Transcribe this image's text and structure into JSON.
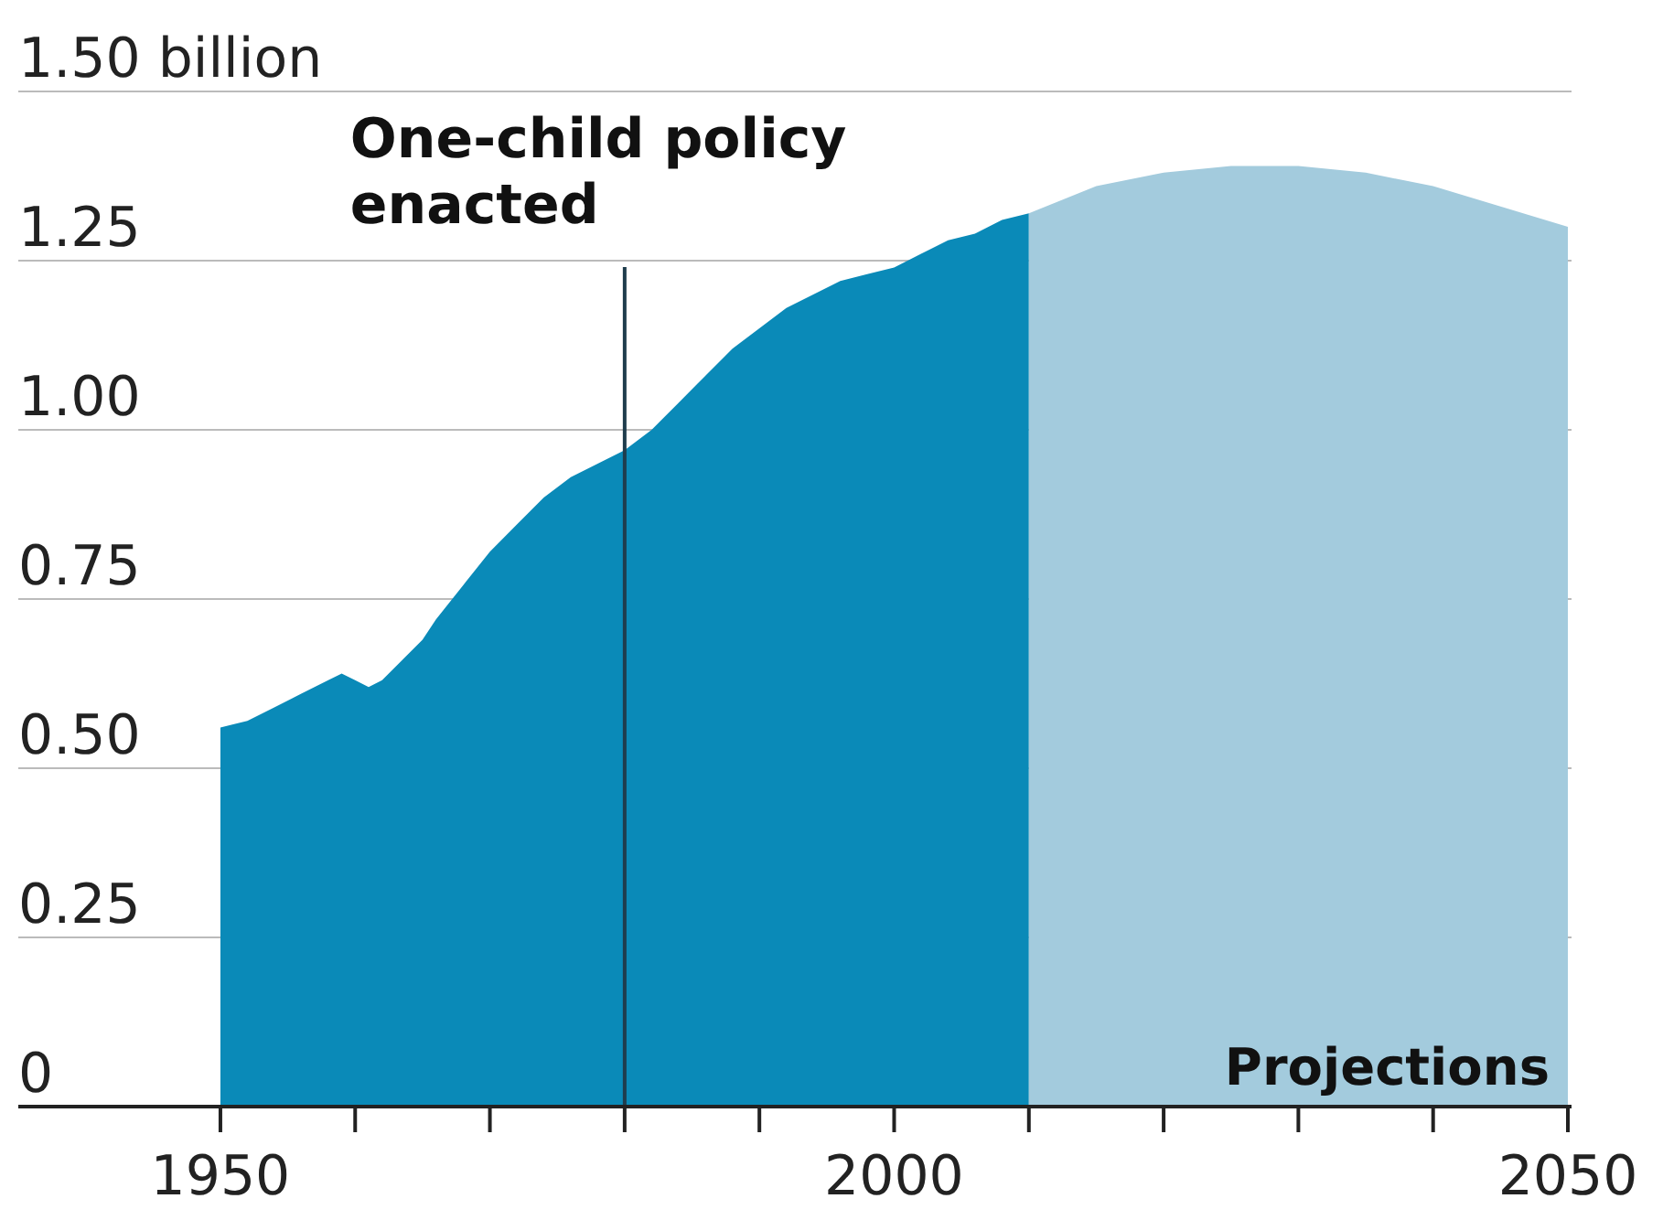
{
  "chart_data": {
    "type": "area",
    "series": [
      {
        "color": "#0a8ab8",
        "x": [
          1950,
          1952,
          1954,
          1956,
          1958,
          1959,
          1960,
          1961,
          1962,
          1964,
          1965,
          1966,
          1968,
          1970,
          1972,
          1974,
          1976,
          1978,
          1980,
          1982,
          1984,
          1986,
          1988,
          1990,
          1992,
          1994,
          1996,
          1998,
          2000,
          2002,
          2004,
          2006,
          2008,
          2010
        ],
        "values": [
          0.56,
          0.57,
          0.59,
          0.61,
          0.63,
          0.64,
          0.63,
          0.62,
          0.63,
          0.67,
          0.69,
          0.72,
          0.77,
          0.82,
          0.86,
          0.9,
          0.93,
          0.95,
          0.97,
          1.0,
          1.04,
          1.08,
          1.12,
          1.15,
          1.18,
          1.2,
          1.22,
          1.23,
          1.24,
          1.26,
          1.28,
          1.29,
          1.31,
          1.32
        ]
      },
      {
        "name": "Projections",
        "color": "#a3cbdd",
        "x": [
          2010,
          2015,
          2020,
          2025,
          2030,
          2035,
          2040,
          2045,
          2050
        ],
        "values": [
          1.32,
          1.36,
          1.38,
          1.39,
          1.39,
          1.38,
          1.36,
          1.33,
          1.3
        ]
      }
    ],
    "xlim": [
      1935,
      2050
    ],
    "xticks": [
      1950,
      {
        "value": 1960,
        "label": null
      },
      {
        "value": 1970,
        "label": null
      },
      {
        "value": 1980,
        "label": null
      },
      {
        "value": 1990,
        "label": null
      },
      2000,
      {
        "value": 2010,
        "label": null
      },
      {
        "value": 2020,
        "label": null
      },
      {
        "value": 2030,
        "label": null
      },
      {
        "value": 2040,
        "label": null
      },
      2050
    ],
    "ylim": [
      0,
      1.5
    ],
    "yticks": [
      0,
      {
        "value": 0.25,
        "label": "0.25"
      },
      {
        "value": 0.5,
        "label": "0.50"
      },
      {
        "value": 0.75,
        "label": "0.75"
      },
      {
        "value": 1,
        "label": "1.00"
      },
      {
        "value": 1.25,
        "label": "1.25"
      },
      {
        "value": 1.5,
        "label": "1.50 billion"
      }
    ],
    "grid": "y",
    "ref_lines": [
      {
        "axis": "x",
        "value": 1980,
        "label": "One-child policy enacted",
        "color": "#1f3d4d"
      }
    ]
  }
}
